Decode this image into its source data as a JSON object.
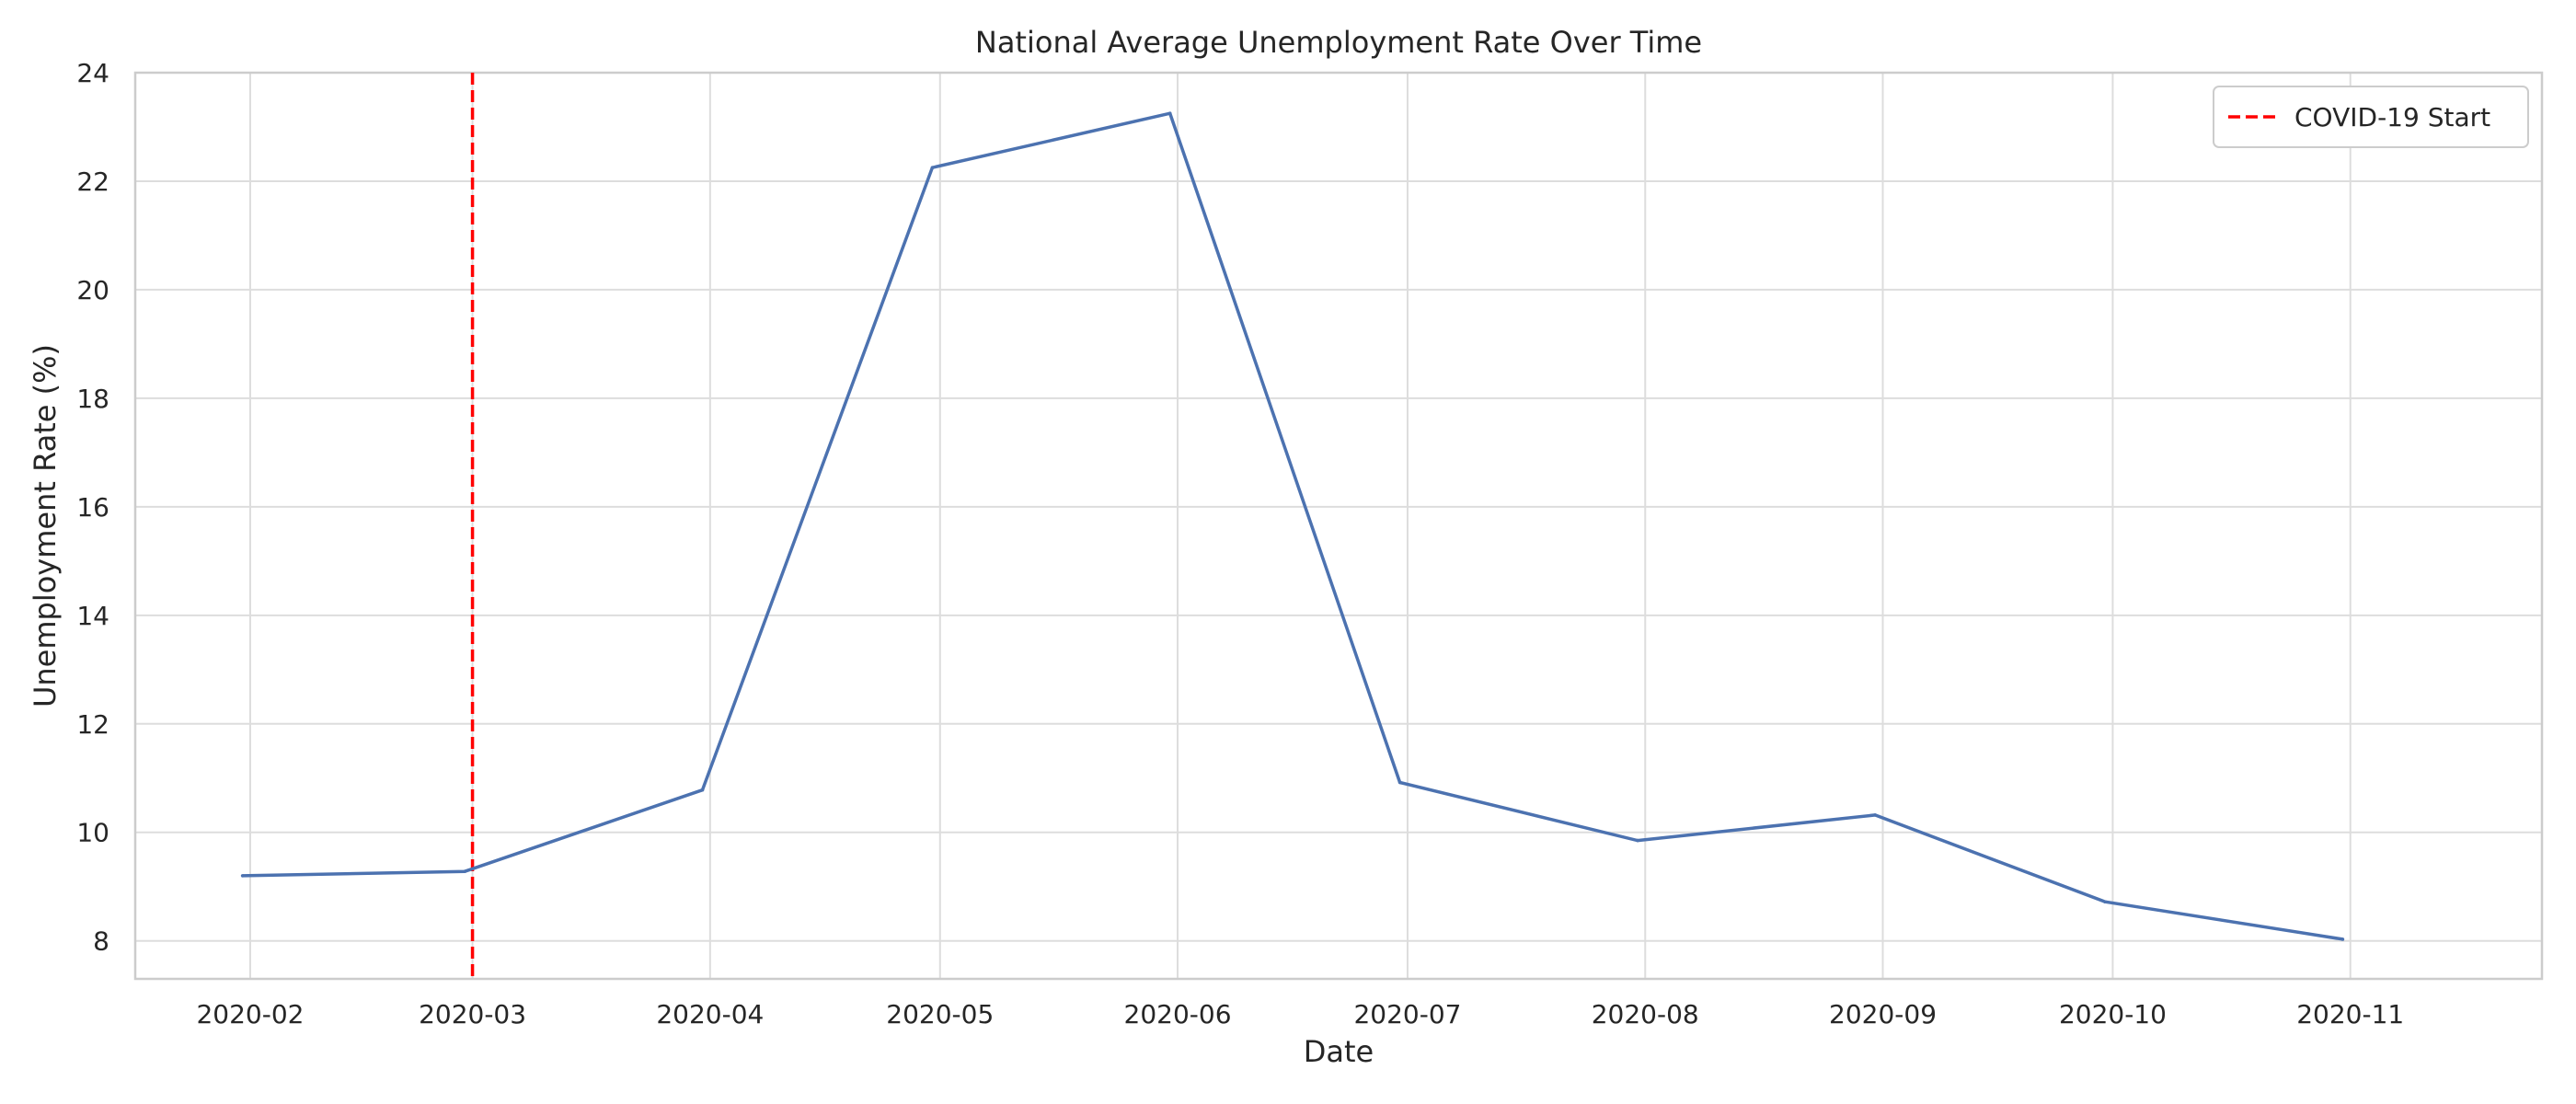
{
  "chart_data": {
    "type": "line",
    "title": "National Average Unemployment Rate Over Time",
    "xlabel": "Date",
    "ylabel": "Unemployment Rate (%)",
    "xlim": [
      "2020-01-17",
      "2020-11-26"
    ],
    "ylim": [
      7.3,
      24
    ],
    "x_ticks": [
      "2020-02-01",
      "2020-03-01",
      "2020-04-01",
      "2020-05-01",
      "2020-06-01",
      "2020-07-01",
      "2020-08-01",
      "2020-09-01",
      "2020-10-01",
      "2020-11-01"
    ],
    "x_tick_labels": [
      "2020-02",
      "2020-03",
      "2020-04",
      "2020-05",
      "2020-06",
      "2020-07",
      "2020-08",
      "2020-09",
      "2020-10",
      "2020-11"
    ],
    "y_ticks": [
      8,
      10,
      12,
      14,
      16,
      18,
      20,
      22,
      24
    ],
    "grid": true,
    "legend": {
      "position": "upper right",
      "entries": [
        "COVID-19 Start"
      ]
    },
    "series": [
      {
        "color": "#4c72b0",
        "x": [
          "2020-01-31",
          "2020-02-29",
          "2020-03-31",
          "2020-04-30",
          "2020-05-31",
          "2020-06-30",
          "2020-07-31",
          "2020-08-31",
          "2020-09-30",
          "2020-10-31"
        ],
        "y": [
          9.2,
          9.28,
          10.78,
          22.25,
          23.25,
          10.92,
          9.85,
          10.32,
          8.72,
          8.03
        ]
      }
    ],
    "vlines": [
      {
        "name": "COVID-19 Start",
        "x": "2020-03-01",
        "color": "#ff0000",
        "style": "dashed"
      }
    ]
  }
}
